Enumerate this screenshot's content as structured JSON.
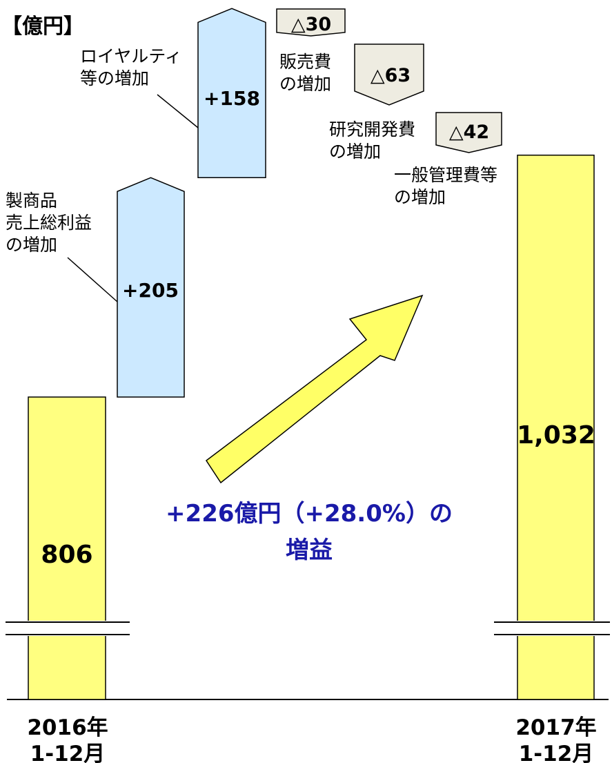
{
  "chart_data": {
    "type": "bar",
    "subtype": "waterfall",
    "title": "",
    "unit_label": "【億円】",
    "y_axis_broken": true,
    "categories": [
      "2016年\n1-12月",
      "製商品\n売上総利益\nの増加",
      "ロイヤルティ\n等の増加",
      "販売費\nの増加",
      "研究開発費\nの増加",
      "一般管理費等\nの増加",
      "2017年\n1-12月"
    ],
    "bars": [
      {
        "label": "2016年\n1-12月",
        "kind": "total",
        "value": 806,
        "display": "806"
      },
      {
        "label": "製商品\n売上総利益\nの増加",
        "kind": "increase",
        "value": 205,
        "display": "+205"
      },
      {
        "label": "ロイヤルティ\n等の増加",
        "kind": "increase",
        "value": 158,
        "display": "+158"
      },
      {
        "label": "販売費\nの増加",
        "kind": "decrease",
        "value": -30,
        "display": "△30"
      },
      {
        "label": "研究開発費\nの増加",
        "kind": "decrease",
        "value": -63,
        "display": "△63"
      },
      {
        "label": "一般管理費等\nの増加",
        "kind": "decrease",
        "value": -42,
        "display": "△42"
      },
      {
        "label": "2017年\n1-12月",
        "kind": "total",
        "value": 1032,
        "display": "1,032"
      }
    ],
    "annotation": {
      "line1": "+226億円（+28.0%）の",
      "line2": "増益",
      "change_value": 226,
      "change_pct": 28.0
    },
    "colors": {
      "total": "#ffff80",
      "increase": "#cce9ff",
      "decrease": "#eeece1",
      "arrow": "#ffff66",
      "annotation_text": "#1a1aa8"
    }
  }
}
